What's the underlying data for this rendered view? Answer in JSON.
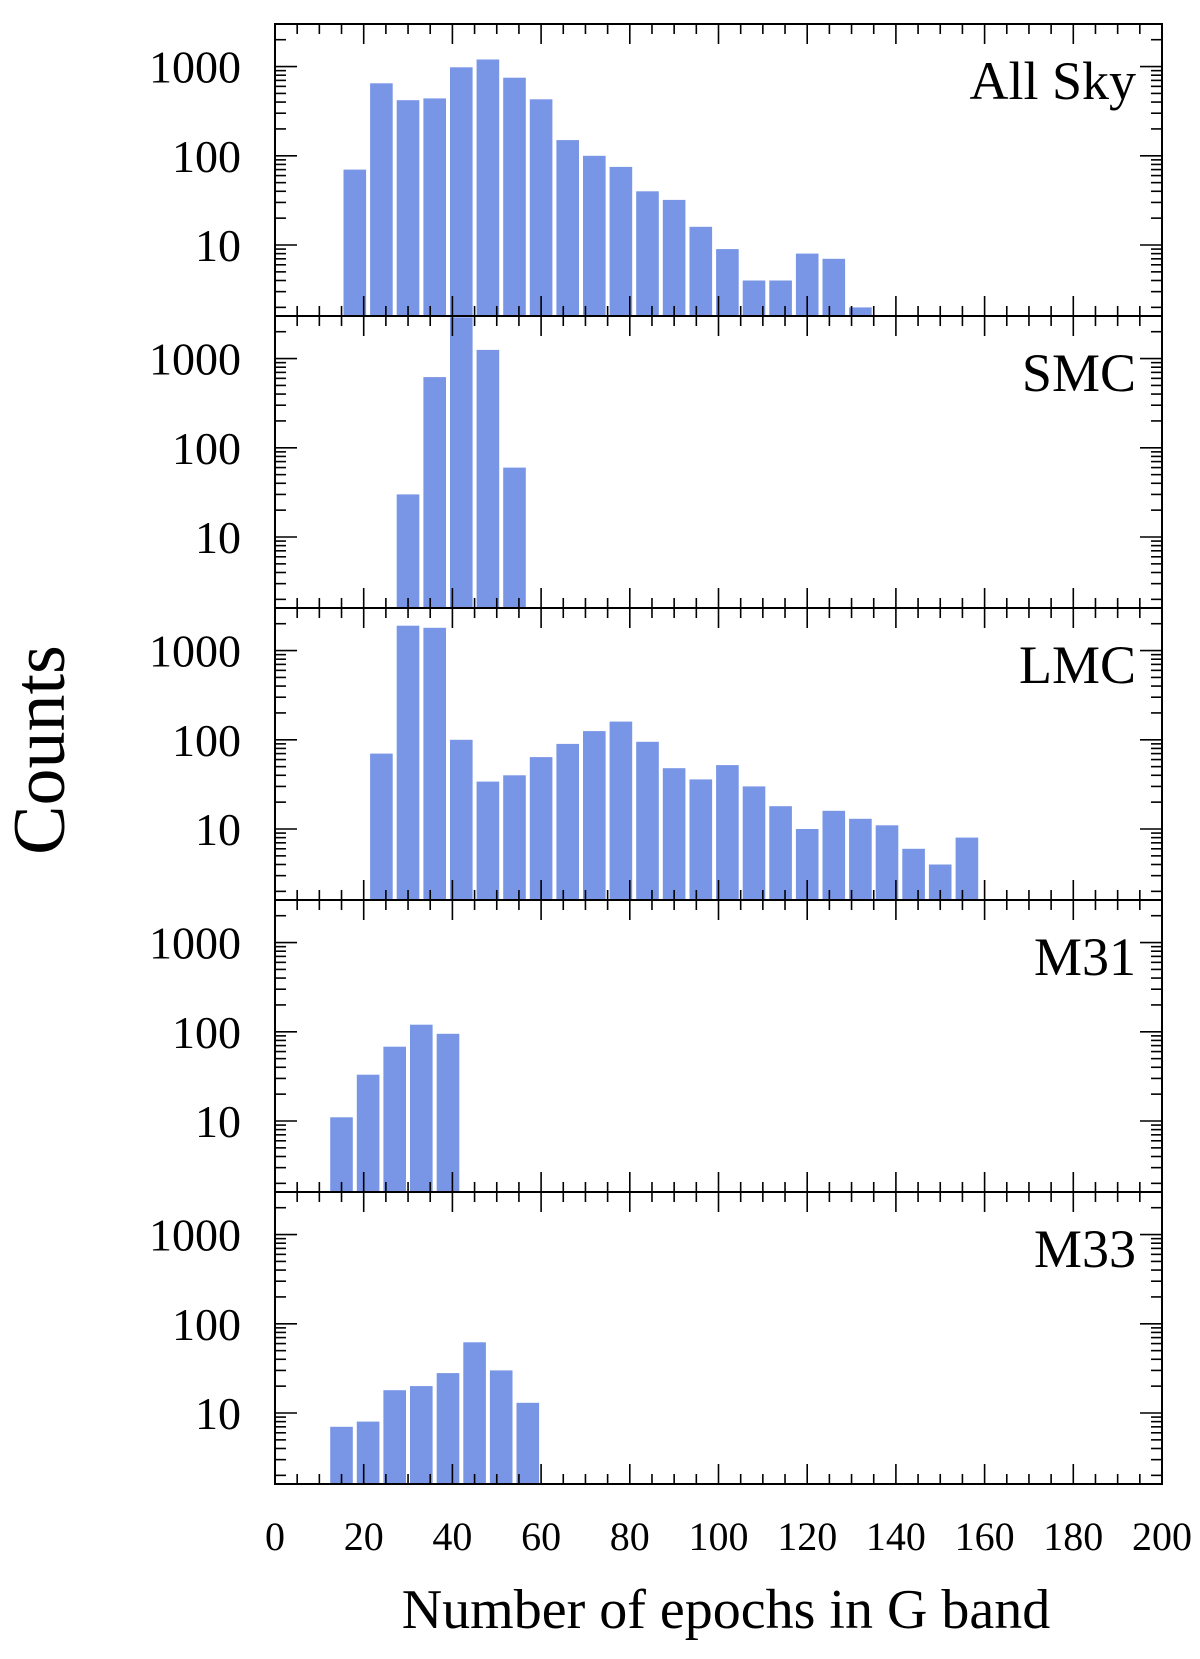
{
  "chart_data": {
    "type": "bar",
    "xlabel": "Number of epochs in G band",
    "ylabel": "Counts",
    "xlim": [
      0,
      200
    ],
    "x_ticks": [
      "0",
      "20",
      "40",
      "60",
      "80",
      "100",
      "120",
      "140",
      "160",
      "180",
      "200"
    ],
    "y_scale": "log",
    "ylim": [
      1.6,
      3000
    ],
    "y_ticks": [
      "10",
      "100",
      "1000"
    ],
    "bin_width": 6,
    "bar_color": "#7895e6",
    "legend": "none",
    "panels": [
      {
        "label": "All Sky",
        "bins": [
          {
            "x": 18,
            "value": 70
          },
          {
            "x": 24,
            "value": 650
          },
          {
            "x": 30,
            "value": 420
          },
          {
            "x": 36,
            "value": 440
          },
          {
            "x": 42,
            "value": 980
          },
          {
            "x": 48,
            "value": 1200
          },
          {
            "x": 54,
            "value": 750
          },
          {
            "x": 60,
            "value": 430
          },
          {
            "x": 66,
            "value": 150
          },
          {
            "x": 72,
            "value": 100
          },
          {
            "x": 78,
            "value": 75
          },
          {
            "x": 84,
            "value": 40
          },
          {
            "x": 90,
            "value": 32
          },
          {
            "x": 96,
            "value": 16
          },
          {
            "x": 102,
            "value": 9
          },
          {
            "x": 108,
            "value": 4
          },
          {
            "x": 114,
            "value": 4
          },
          {
            "x": 120,
            "value": 8
          },
          {
            "x": 126,
            "value": 7
          },
          {
            "x": 132,
            "value": 2
          }
        ]
      },
      {
        "label": "SMC",
        "bins": [
          {
            "x": 30,
            "value": 30
          },
          {
            "x": 36,
            "value": 620
          },
          {
            "x": 42,
            "value": 2900
          },
          {
            "x": 48,
            "value": 1250
          },
          {
            "x": 54,
            "value": 60
          }
        ]
      },
      {
        "label": "LMC",
        "bins": [
          {
            "x": 24,
            "value": 70
          },
          {
            "x": 30,
            "value": 1900
          },
          {
            "x": 36,
            "value": 1800
          },
          {
            "x": 42,
            "value": 100
          },
          {
            "x": 48,
            "value": 34
          },
          {
            "x": 54,
            "value": 40
          },
          {
            "x": 60,
            "value": 64
          },
          {
            "x": 66,
            "value": 90
          },
          {
            "x": 72,
            "value": 125
          },
          {
            "x": 78,
            "value": 160
          },
          {
            "x": 84,
            "value": 95
          },
          {
            "x": 90,
            "value": 48
          },
          {
            "x": 96,
            "value": 36
          },
          {
            "x": 102,
            "value": 52
          },
          {
            "x": 108,
            "value": 30
          },
          {
            "x": 114,
            "value": 18
          },
          {
            "x": 120,
            "value": 10
          },
          {
            "x": 126,
            "value": 16
          },
          {
            "x": 132,
            "value": 13
          },
          {
            "x": 138,
            "value": 11
          },
          {
            "x": 144,
            "value": 6
          },
          {
            "x": 150,
            "value": 4
          },
          {
            "x": 156,
            "value": 8
          }
        ]
      },
      {
        "label": "M31",
        "bins": [
          {
            "x": 15,
            "value": 11
          },
          {
            "x": 21,
            "value": 33
          },
          {
            "x": 27,
            "value": 68
          },
          {
            "x": 33,
            "value": 120
          },
          {
            "x": 39,
            "value": 95
          }
        ]
      },
      {
        "label": "M33",
        "bins": [
          {
            "x": 15,
            "value": 7
          },
          {
            "x": 21,
            "value": 8
          },
          {
            "x": 27,
            "value": 18
          },
          {
            "x": 33,
            "value": 20
          },
          {
            "x": 39,
            "value": 28
          },
          {
            "x": 45,
            "value": 62
          },
          {
            "x": 51,
            "value": 30
          },
          {
            "x": 57,
            "value": 13
          }
        ]
      }
    ]
  }
}
